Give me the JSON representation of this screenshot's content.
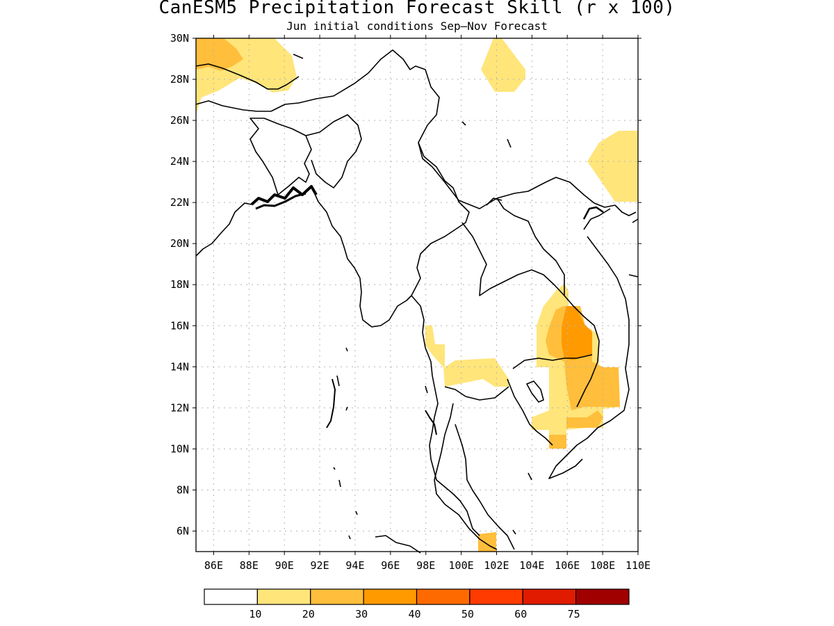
{
  "title": "CanESM5 Precipitation Forecast Skill (r x 100)",
  "subtitle": "Jun initial conditions  Sep–Nov Forecast",
  "map": {
    "lon_range": [
      85,
      110
    ],
    "lat_range": [
      5,
      30
    ],
    "lat_ticks": [
      "30N",
      "28N",
      "26N",
      "24N",
      "22N",
      "20N",
      "18N",
      "16N",
      "14N",
      "12N",
      "10N",
      "8N",
      "6N"
    ],
    "lon_ticks": [
      "86E",
      "88E",
      "90E",
      "92E",
      "94E",
      "96E",
      "98E",
      "100E",
      "102E",
      "104E",
      "106E",
      "108E",
      "110E"
    ],
    "gridlines": true
  },
  "colorbar": {
    "labels": [
      "10",
      "20",
      "30",
      "40",
      "50",
      "60",
      "75"
    ],
    "colors": [
      "#ffffff",
      "#ffe57a",
      "#ffbe3b",
      "#ff9a00",
      "#ff6a00",
      "#ff3b00",
      "#e01b00",
      "#a00000"
    ]
  }
}
